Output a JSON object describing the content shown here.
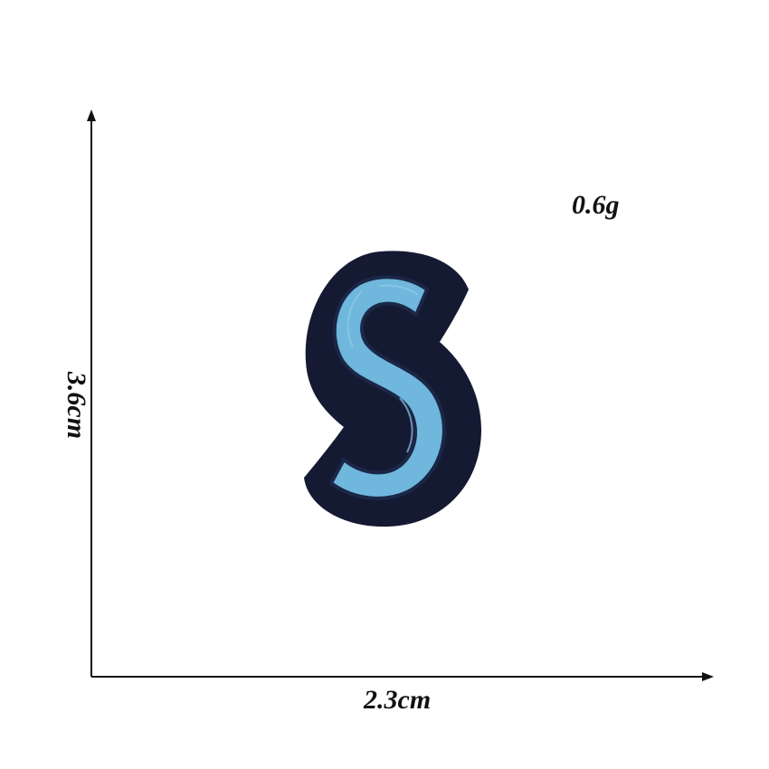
{
  "product": {
    "letter": "S",
    "weight_label": "0.6g",
    "width_label": "2.3cm",
    "height_label": "3.6cm"
  },
  "colors": {
    "patch_border": "#151a33",
    "patch_fill": "#6fb7dc",
    "axis": "#111111",
    "background": "#ffffff"
  }
}
